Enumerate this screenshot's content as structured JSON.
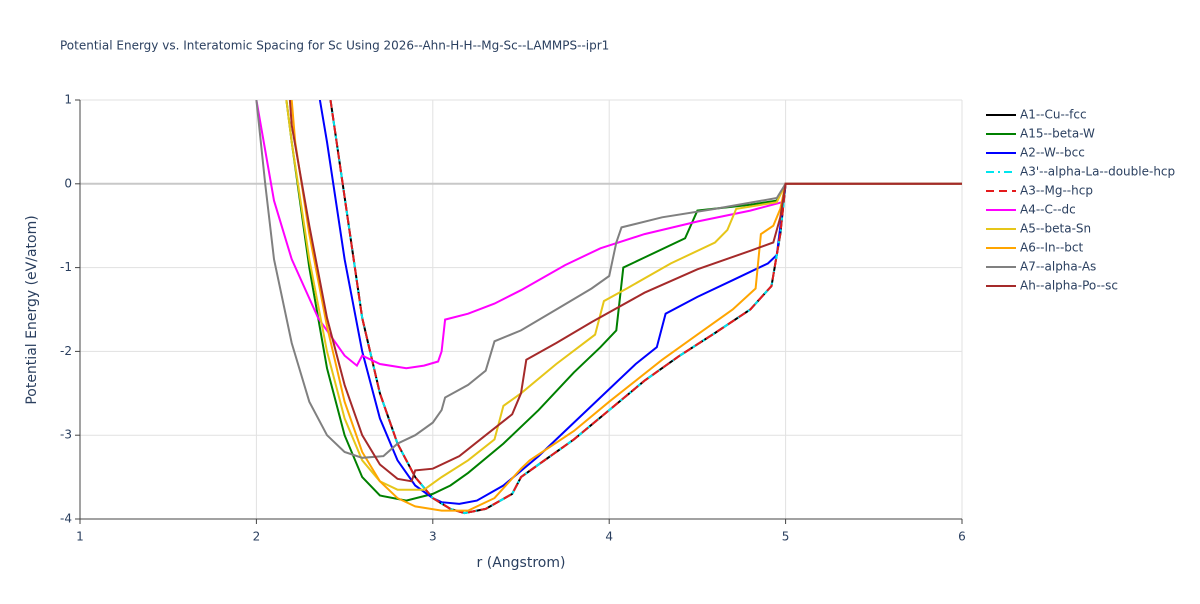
{
  "chart_data": {
    "type": "line",
    "title": "Potential Energy vs. Interatomic Spacing for Sc Using 2026--Ahn-H-H--Mg-Sc--LAMMPS--ipr1",
    "x_label": "r (Angstrom)",
    "y_label": "Potential Energy (eV/atom)",
    "xlim": [
      1,
      6
    ],
    "ylim": [
      -4,
      1
    ],
    "xticks": [
      1,
      2,
      3,
      4,
      5,
      6
    ],
    "yticks": [
      -4,
      -3,
      -2,
      -1,
      0,
      1
    ],
    "grid": true,
    "series": [
      {
        "name": "A1--Cu--fcc",
        "color": "#000000",
        "dash": "solid",
        "x": [
          2.42,
          2.6,
          2.7,
          2.8,
          2.9,
          3.0,
          3.1,
          3.18,
          3.3,
          3.45,
          3.5,
          3.6,
          3.8,
          4.0,
          4.2,
          4.4,
          4.6,
          4.8,
          4.92,
          4.97,
          5.0,
          6.0
        ],
        "values": [
          1,
          -1.6,
          -2.5,
          -3.1,
          -3.5,
          -3.75,
          -3.88,
          -3.93,
          -3.88,
          -3.7,
          -3.5,
          -3.35,
          -3.05,
          -2.7,
          -2.35,
          -2.05,
          -1.78,
          -1.5,
          -1.22,
          -0.6,
          0,
          0
        ]
      },
      {
        "name": "A15--beta-W",
        "color": "#008000",
        "dash": "solid",
        "x": [
          2.17,
          2.2,
          2.3,
          2.4,
          2.5,
          2.6,
          2.7,
          2.85,
          3.0,
          3.1,
          3.2,
          3.4,
          3.6,
          3.8,
          3.95,
          4.04,
          4.08,
          4.2,
          4.43,
          4.5,
          4.8,
          4.95,
          5.0,
          6.0
        ],
        "values": [
          1,
          0.5,
          -1.0,
          -2.2,
          -3.0,
          -3.5,
          -3.72,
          -3.78,
          -3.7,
          -3.6,
          -3.45,
          -3.1,
          -2.7,
          -2.25,
          -1.95,
          -1.75,
          -1.0,
          -0.88,
          -0.65,
          -0.32,
          -0.25,
          -0.2,
          0,
          0
        ]
      },
      {
        "name": "A2--W--bcc",
        "color": "#0000ff",
        "dash": "solid",
        "x": [
          2.36,
          2.4,
          2.5,
          2.6,
          2.7,
          2.8,
          2.9,
          3.0,
          3.05,
          3.15,
          3.25,
          3.4,
          3.6,
          3.8,
          4.0,
          4.15,
          4.27,
          4.32,
          4.5,
          4.7,
          4.9,
          4.95,
          5.0,
          6.0
        ],
        "values": [
          1,
          0.5,
          -0.9,
          -2.0,
          -2.8,
          -3.3,
          -3.6,
          -3.75,
          -3.8,
          -3.82,
          -3.78,
          -3.6,
          -3.25,
          -2.85,
          -2.45,
          -2.15,
          -1.95,
          -1.55,
          -1.35,
          -1.15,
          -0.95,
          -0.85,
          0,
          0
        ]
      },
      {
        "name": "A3'--alpha-La--double-hcp",
        "color": "#00e5ee",
        "dash": "dashdot",
        "x": [
          2.42,
          2.6,
          2.7,
          2.8,
          2.9,
          3.0,
          3.1,
          3.18,
          3.3,
          3.45,
          3.5,
          3.6,
          3.8,
          4.0,
          4.2,
          4.4,
          4.6,
          4.8,
          4.92,
          4.97,
          5.0,
          6.0
        ],
        "values": [
          1,
          -1.6,
          -2.5,
          -3.1,
          -3.5,
          -3.75,
          -3.88,
          -3.93,
          -3.88,
          -3.7,
          -3.5,
          -3.35,
          -3.05,
          -2.7,
          -2.35,
          -2.05,
          -1.78,
          -1.5,
          -1.22,
          -0.6,
          0,
          0
        ]
      },
      {
        "name": "A3--Mg--hcp",
        "color": "#e41a1c",
        "dash": "dash",
        "x": [
          2.42,
          2.6,
          2.7,
          2.8,
          2.9,
          3.0,
          3.1,
          3.18,
          3.3,
          3.45,
          3.5,
          3.6,
          3.8,
          4.0,
          4.2,
          4.4,
          4.6,
          4.8,
          4.92,
          4.97,
          5.0,
          6.0
        ],
        "values": [
          1,
          -1.6,
          -2.5,
          -3.1,
          -3.5,
          -3.75,
          -3.88,
          -3.93,
          -3.88,
          -3.7,
          -3.5,
          -3.35,
          -3.05,
          -2.7,
          -2.35,
          -2.05,
          -1.78,
          -1.5,
          -1.22,
          -0.6,
          0,
          0
        ]
      },
      {
        "name": "A4--C--dc",
        "color": "#ff00ff",
        "dash": "solid",
        "x": [
          2.0,
          2.1,
          2.2,
          2.35,
          2.5,
          2.57,
          2.6,
          2.7,
          2.85,
          2.95,
          3.03,
          3.05,
          3.07,
          3.2,
          3.35,
          3.5,
          3.75,
          3.95,
          4.2,
          4.5,
          4.8,
          4.98,
          5.0,
          6.0
        ],
        "values": [
          1,
          -0.2,
          -0.9,
          -1.6,
          -2.05,
          -2.17,
          -2.05,
          -2.15,
          -2.2,
          -2.17,
          -2.12,
          -2.0,
          -1.62,
          -1.55,
          -1.43,
          -1.27,
          -0.97,
          -0.77,
          -0.6,
          -0.45,
          -0.32,
          -0.22,
          0,
          0
        ]
      },
      {
        "name": "A5--beta-Sn",
        "color": "#e6c619",
        "dash": "solid",
        "x": [
          2.17,
          2.2,
          2.3,
          2.4,
          2.5,
          2.6,
          2.7,
          2.8,
          2.95,
          3.05,
          3.2,
          3.35,
          3.4,
          3.5,
          3.7,
          3.92,
          3.97,
          4.1,
          4.35,
          4.6,
          4.67,
          4.72,
          4.95,
          5.0,
          6.0
        ],
        "values": [
          1,
          0.5,
          -0.9,
          -2.0,
          -2.8,
          -3.3,
          -3.55,
          -3.65,
          -3.65,
          -3.5,
          -3.3,
          -3.05,
          -2.65,
          -2.5,
          -2.15,
          -1.8,
          -1.4,
          -1.25,
          -0.95,
          -0.7,
          -0.55,
          -0.3,
          -0.22,
          0,
          0
        ]
      },
      {
        "name": "A6--In--bct",
        "color": "#ffa500",
        "dash": "solid",
        "x": [
          2.2,
          2.22,
          2.3,
          2.4,
          2.5,
          2.6,
          2.7,
          2.8,
          2.9,
          3.05,
          3.2,
          3.35,
          3.5,
          3.55,
          3.8,
          4.0,
          4.3,
          4.5,
          4.7,
          4.83,
          4.86,
          4.93,
          4.97,
          5.0,
          6.0
        ],
        "values": [
          1,
          0.5,
          -0.6,
          -1.7,
          -2.6,
          -3.2,
          -3.55,
          -3.75,
          -3.85,
          -3.9,
          -3.9,
          -3.75,
          -3.4,
          -3.3,
          -2.95,
          -2.6,
          -2.1,
          -1.8,
          -1.5,
          -1.25,
          -0.6,
          -0.5,
          -0.3,
          0,
          0
        ]
      },
      {
        "name": "A7--alpha-As",
        "color": "#808080",
        "dash": "solid",
        "x": [
          2.0,
          2.05,
          2.1,
          2.2,
          2.3,
          2.4,
          2.5,
          2.6,
          2.72,
          2.8,
          2.9,
          3.0,
          3.05,
          3.07,
          3.2,
          3.3,
          3.35,
          3.5,
          3.7,
          3.9,
          4.0,
          4.04,
          4.07,
          4.3,
          4.6,
          4.95,
          5.0,
          6.0
        ],
        "values": [
          1,
          0,
          -0.9,
          -1.9,
          -2.6,
          -3.0,
          -3.2,
          -3.27,
          -3.25,
          -3.1,
          -3.0,
          -2.85,
          -2.7,
          -2.55,
          -2.4,
          -2.23,
          -1.88,
          -1.75,
          -1.5,
          -1.25,
          -1.1,
          -0.7,
          -0.52,
          -0.4,
          -0.3,
          -0.17,
          0,
          0
        ]
      },
      {
        "name": "Ah--alpha-Po--sc",
        "color": "#a52a2a",
        "dash": "solid",
        "x": [
          2.19,
          2.2,
          2.3,
          2.4,
          2.5,
          2.6,
          2.7,
          2.8,
          2.88,
          2.9,
          3.0,
          3.15,
          3.3,
          3.45,
          3.5,
          3.53,
          3.7,
          3.9,
          4.2,
          4.5,
          4.8,
          4.93,
          4.97,
          5.0,
          6.0
        ],
        "values": [
          1,
          0.7,
          -0.5,
          -1.6,
          -2.4,
          -3.0,
          -3.35,
          -3.52,
          -3.55,
          -3.42,
          -3.4,
          -3.25,
          -3.0,
          -2.75,
          -2.5,
          -2.1,
          -1.9,
          -1.65,
          -1.3,
          -1.02,
          -0.8,
          -0.7,
          -0.4,
          0,
          0
        ]
      }
    ]
  }
}
